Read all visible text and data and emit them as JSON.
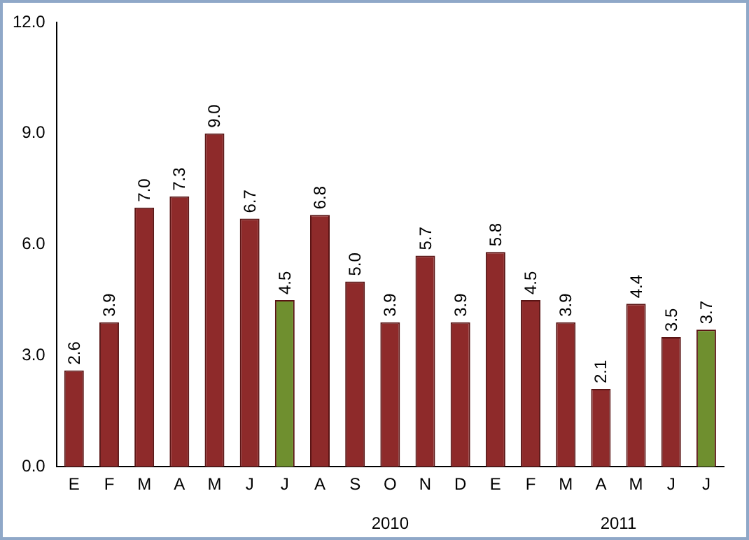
{
  "chart_data": {
    "type": "bar",
    "categories": [
      "E",
      "F",
      "M",
      "A",
      "M",
      "J",
      "J",
      "A",
      "S",
      "O",
      "N",
      "D",
      "E",
      "F",
      "M",
      "A",
      "M",
      "J",
      "J"
    ],
    "values": [
      2.6,
      3.9,
      7.0,
      7.3,
      9.0,
      6.7,
      4.5,
      6.8,
      5.0,
      3.9,
      5.7,
      3.9,
      5.8,
      4.5,
      3.9,
      2.1,
      4.4,
      3.5,
      3.7
    ],
    "colors": [
      "#8e2a2a",
      "#8e2a2a",
      "#8e2a2a",
      "#8e2a2a",
      "#8e2a2a",
      "#8e2a2a",
      "#6f8f2f",
      "#8e2a2a",
      "#8e2a2a",
      "#8e2a2a",
      "#8e2a2a",
      "#8e2a2a",
      "#8e2a2a",
      "#8e2a2a",
      "#8e2a2a",
      "#8e2a2a",
      "#8e2a2a",
      "#8e2a2a",
      "#6f8f2f"
    ],
    "ylim": [
      0,
      12
    ],
    "yticks": [
      {
        "value": 0,
        "label": "0.0"
      },
      {
        "value": 3,
        "label": "3.0"
      },
      {
        "value": 6,
        "label": "6.0"
      },
      {
        "value": 9,
        "label": "9.0"
      },
      {
        "value": 12,
        "label": "12.0"
      }
    ],
    "value_labels": [
      "2.6",
      "3.9",
      "7.0",
      "7.3",
      "9.0",
      "6.7",
      "4.5",
      "6.8",
      "5.0",
      "3.9",
      "5.7",
      "3.9",
      "5.8",
      "4.5",
      "3.9",
      "2.1",
      "4.4",
      "3.5",
      "3.7"
    ],
    "grid": false,
    "legend": false,
    "annotations": [
      "2010",
      "2011"
    ]
  }
}
